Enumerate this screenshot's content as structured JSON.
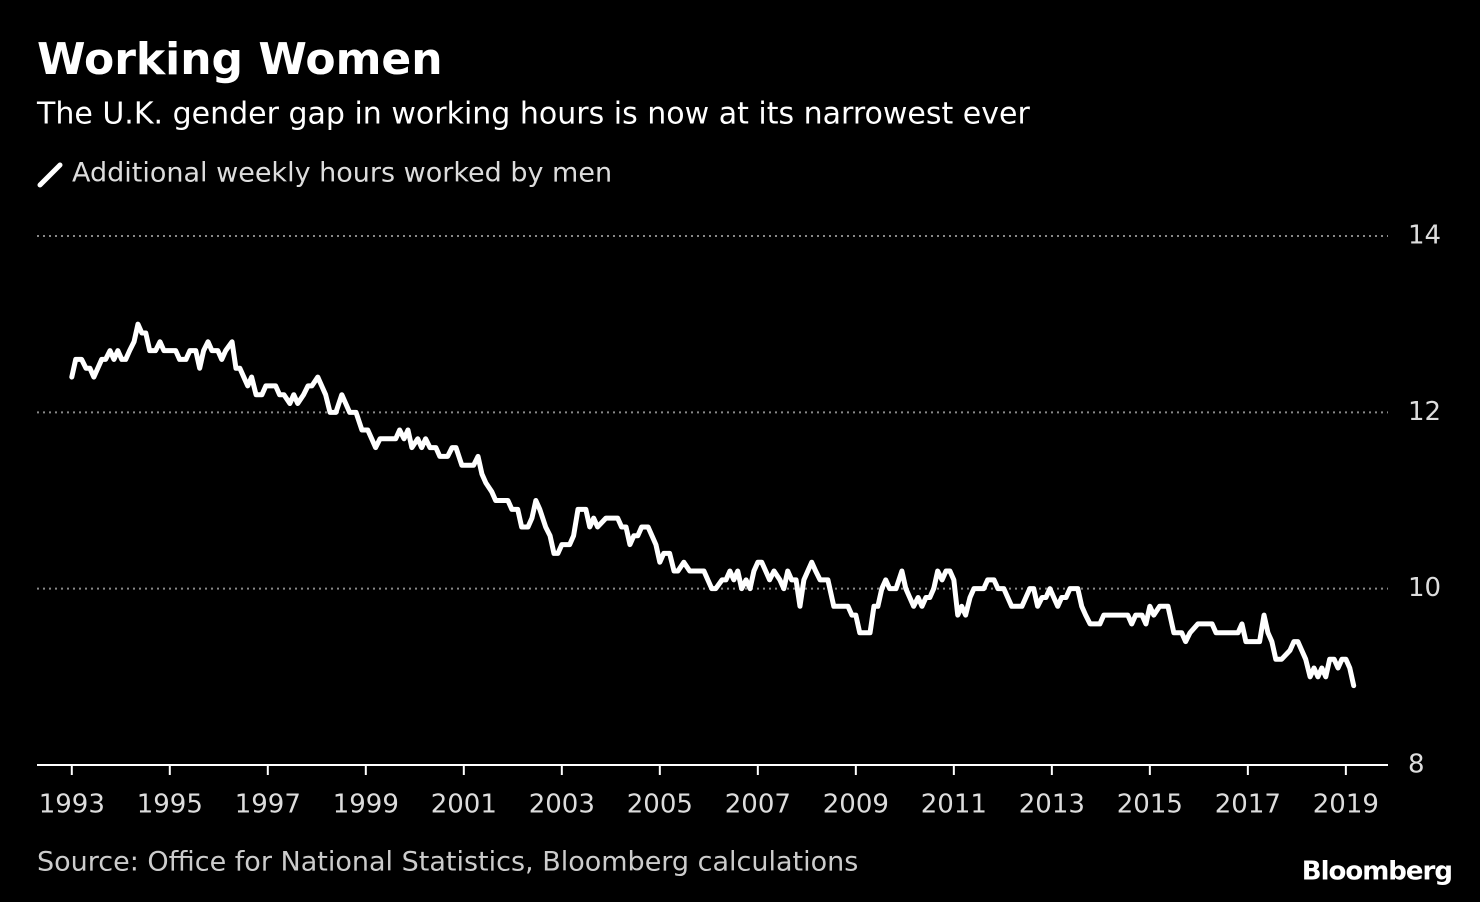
{
  "chart_data": {
    "type": "line",
    "title": "Working Women",
    "subtitle": "The U.K. gender gap in working hours is now at its narrowest ever",
    "source": "Source: Office for National Statistics, Bloomberg calculations",
    "brand": "Bloomberg",
    "xlim": [
      1992.29,
      2019.86
    ],
    "xticks": [
      1993,
      1995,
      1997,
      1999,
      2001,
      2003,
      2005,
      2007,
      2009,
      2011,
      2013,
      2015,
      2017,
      2019
    ],
    "ylim": [
      8,
      14
    ],
    "yticks": [
      8,
      10,
      12,
      14
    ],
    "grid": true,
    "x": [
      1993.0,
      1993.08,
      1993.2,
      1993.29,
      1993.37,
      1993.45,
      1993.53,
      1993.61,
      1993.69,
      1993.78,
      1993.86,
      1993.94,
      1994.02,
      1994.1,
      1994.18,
      1994.27,
      1994.35,
      1994.43,
      1994.51,
      1994.59,
      1994.71,
      1994.8,
      1994.88,
      1995.12,
      1995.2,
      1995.33,
      1995.41,
      1995.53,
      1995.61,
      1995.69,
      1995.78,
      1995.86,
      1995.98,
      1996.06,
      1996.14,
      1996.27,
      1996.35,
      1996.43,
      1996.51,
      1996.59,
      1996.67,
      1996.76,
      1996.88,
      1996.96,
      1997.16,
      1997.24,
      1997.33,
      1997.45,
      1997.53,
      1997.61,
      1997.73,
      1997.82,
      1997.9,
      1998.02,
      1998.1,
      1998.18,
      1998.27,
      1998.39,
      1998.51,
      1998.59,
      1998.67,
      1998.8,
      1998.92,
      1999.04,
      1999.12,
      1999.2,
      1999.29,
      1999.61,
      1999.69,
      1999.78,
      1999.86,
      1999.94,
      2000.06,
      2000.14,
      2000.22,
      2000.31,
      2000.43,
      2000.51,
      2000.67,
      2000.76,
      2000.84,
      2000.96,
      2001.2,
      2001.29,
      2001.37,
      2001.45,
      2001.57,
      2001.65,
      2001.9,
      2001.98,
      2002.1,
      2002.18,
      2002.31,
      2002.39,
      2002.47,
      2002.55,
      2002.67,
      2002.76,
      2002.84,
      2002.92,
      2003.0,
      2003.16,
      2003.24,
      2003.33,
      2003.49,
      2003.57,
      2003.65,
      2003.73,
      2003.9,
      2004.14,
      2004.22,
      2004.31,
      2004.39,
      2004.47,
      2004.55,
      2004.63,
      2004.76,
      2004.84,
      2004.92,
      2005.0,
      2005.08,
      2005.2,
      2005.29,
      2005.37,
      2005.49,
      2005.61,
      2005.9,
      2005.98,
      2006.06,
      2006.14,
      2006.27,
      2006.35,
      2006.43,
      2006.51,
      2006.59,
      2006.67,
      2006.76,
      2006.84,
      2006.92,
      2007.0,
      2007.08,
      2007.16,
      2007.24,
      2007.33,
      2007.45,
      2007.53,
      2007.61,
      2007.69,
      2007.78,
      2007.86,
      2007.94,
      2008.02,
      2008.1,
      2008.18,
      2008.27,
      2008.43,
      2008.55,
      2008.84,
      2008.92,
      2009.0,
      2009.08,
      2009.29,
      2009.37,
      2009.45,
      2009.53,
      2009.61,
      2009.69,
      2009.82,
      2009.94,
      2010.02,
      2010.1,
      2010.18,
      2010.27,
      2010.35,
      2010.43,
      2010.51,
      2010.59,
      2010.67,
      2010.76,
      2010.84,
      2010.92,
      2011.0,
      2011.08,
      2011.16,
      2011.24,
      2011.33,
      2011.41,
      2011.61,
      2011.69,
      2011.82,
      2011.9,
      2012.02,
      2012.1,
      2012.18,
      2012.39,
      2012.47,
      2012.55,
      2012.63,
      2012.71,
      2012.8,
      2012.88,
      2012.96,
      2013.04,
      2013.12,
      2013.2,
      2013.29,
      2013.37,
      2013.53,
      2013.61,
      2013.69,
      2013.78,
      2013.98,
      2014.06,
      2014.55,
      2014.63,
      2014.71,
      2014.84,
      2014.92,
      2015.0,
      2015.08,
      2015.2,
      2015.37,
      2015.49,
      2015.65,
      2015.73,
      2015.82,
      2015.98,
      2016.27,
      2016.35,
      2016.8,
      2016.88,
      2016.96,
      2017.24,
      2017.33,
      2017.41,
      2017.49,
      2017.57,
      2017.69,
      2017.86,
      2017.94,
      2018.02,
      2018.1,
      2018.18,
      2018.27,
      2018.35,
      2018.43,
      2018.51,
      2018.59,
      2018.67,
      2018.76,
      2018.84,
      2018.92,
      2019.0,
      2019.08,
      2019.16
    ],
    "series": [
      {
        "name": "Additional weekly hours worked by men",
        "color": "#ffffff",
        "values": [
          12.4,
          12.6,
          12.6,
          12.5,
          12.5,
          12.4,
          12.5,
          12.6,
          12.6,
          12.7,
          12.6,
          12.7,
          12.6,
          12.6,
          12.7,
          12.8,
          13.0,
          12.9,
          12.9,
          12.7,
          12.7,
          12.8,
          12.7,
          12.7,
          12.6,
          12.6,
          12.7,
          12.7,
          12.5,
          12.7,
          12.8,
          12.7,
          12.7,
          12.6,
          12.7,
          12.8,
          12.5,
          12.5,
          12.4,
          12.3,
          12.4,
          12.2,
          12.2,
          12.3,
          12.3,
          12.2,
          12.2,
          12.1,
          12.2,
          12.1,
          12.2,
          12.3,
          12.3,
          12.4,
          12.3,
          12.2,
          12.0,
          12.0,
          12.2,
          12.1,
          12.0,
          12.0,
          11.8,
          11.8,
          11.7,
          11.6,
          11.7,
          11.7,
          11.8,
          11.7,
          11.8,
          11.6,
          11.7,
          11.6,
          11.7,
          11.6,
          11.6,
          11.5,
          11.5,
          11.6,
          11.6,
          11.4,
          11.4,
          11.5,
          11.3,
          11.2,
          11.1,
          11.0,
          11.0,
          10.9,
          10.9,
          10.7,
          10.7,
          10.8,
          11.0,
          10.9,
          10.7,
          10.6,
          10.4,
          10.4,
          10.5,
          10.5,
          10.6,
          10.9,
          10.9,
          10.7,
          10.8,
          10.7,
          10.8,
          10.8,
          10.7,
          10.7,
          10.5,
          10.6,
          10.6,
          10.7,
          10.7,
          10.6,
          10.5,
          10.3,
          10.4,
          10.4,
          10.2,
          10.2,
          10.3,
          10.2,
          10.2,
          10.1,
          10.0,
          10.0,
          10.1,
          10.1,
          10.2,
          10.1,
          10.2,
          10.0,
          10.1,
          10.0,
          10.2,
          10.3,
          10.3,
          10.2,
          10.1,
          10.2,
          10.1,
          10.0,
          10.2,
          10.1,
          10.1,
          9.8,
          10.1,
          10.2,
          10.3,
          10.2,
          10.1,
          10.1,
          9.8,
          9.8,
          9.7,
          9.7,
          9.5,
          9.5,
          9.8,
          9.8,
          10.0,
          10.1,
          10.0,
          10.0,
          10.2,
          10.0,
          9.9,
          9.8,
          9.9,
          9.8,
          9.9,
          9.9,
          10.0,
          10.2,
          10.1,
          10.2,
          10.2,
          10.1,
          9.7,
          9.8,
          9.7,
          9.9,
          10.0,
          10.0,
          10.1,
          10.1,
          10.0,
          10.0,
          9.9,
          9.8,
          9.8,
          9.9,
          10.0,
          10.0,
          9.8,
          9.9,
          9.9,
          10.0,
          9.9,
          9.8,
          9.9,
          9.9,
          10.0,
          10.0,
          9.8,
          9.7,
          9.6,
          9.6,
          9.7,
          9.7,
          9.6,
          9.7,
          9.7,
          9.6,
          9.8,
          9.7,
          9.8,
          9.8,
          9.5,
          9.5,
          9.4,
          9.5,
          9.6,
          9.6,
          9.5,
          9.5,
          9.6,
          9.4,
          9.4,
          9.7,
          9.5,
          9.4,
          9.2,
          9.2,
          9.3,
          9.4,
          9.4,
          9.3,
          9.2,
          9.0,
          9.1,
          9.0,
          9.1,
          9.0,
          9.2,
          9.2,
          9.1,
          9.2,
          9.2,
          9.1,
          8.9
        ]
      }
    ]
  }
}
